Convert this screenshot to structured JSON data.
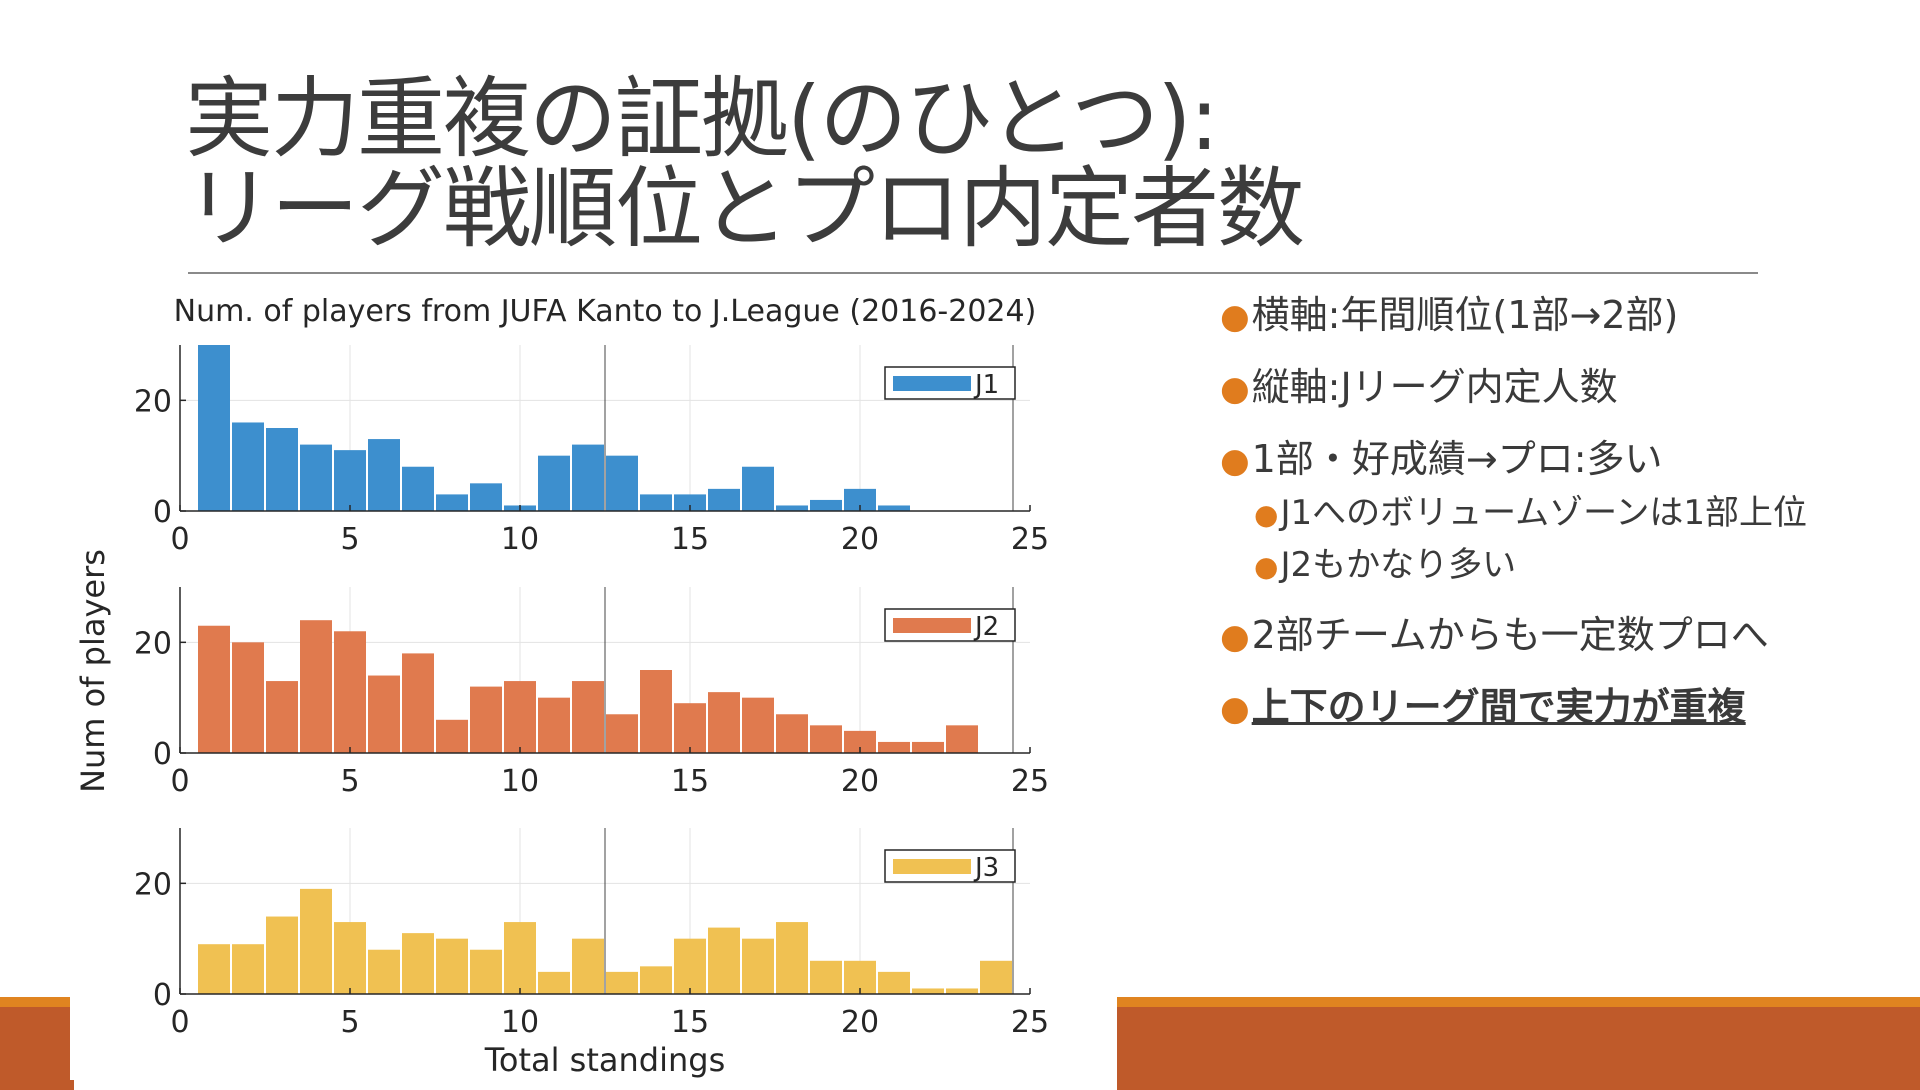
{
  "slide": {
    "title_line1": "実力重複の証拠(のひとつ):",
    "title_line2": "リーグ戦順位とプロ内定者数",
    "bullet_glyph": "●",
    "bullets": [
      "横軸:年間順位(1部→2部)",
      "縦軸:Jリーグ内定人数",
      "1部・好成績→プロ:多い",
      "2部チームからも一定数プロへ",
      "上下のリーグ間で実力が重複"
    ],
    "sub_bullets": [
      "J1へのボリュームゾーンは1部上位",
      "J2もかなり多い"
    ]
  },
  "colors": {
    "accent": "#e07c1e",
    "band": "#bf5a2a",
    "band_top": "#e08420",
    "title": "#3c3c3c"
  },
  "chart_data": {
    "type": "bar",
    "title": "Num. of players from JUFA Kanto to J.League (2016-2024)",
    "xlabel": "Total standings",
    "ylabel": "Num of players",
    "xlim": [
      0,
      25
    ],
    "ylim": [
      0,
      30
    ],
    "xticks": [
      0,
      5,
      10,
      15,
      20,
      25
    ],
    "yticks": [
      0,
      20
    ],
    "grid": true,
    "divider_x": 12.5,
    "legend_location": "top-right",
    "x": [
      1,
      2,
      3,
      4,
      5,
      6,
      7,
      8,
      9,
      10,
      11,
      12,
      13,
      14,
      15,
      16,
      17,
      18,
      19,
      20,
      21,
      22,
      23,
      24
    ],
    "series": [
      {
        "name": "J1",
        "color": "#3d8fce",
        "values": [
          30,
          16,
          15,
          12,
          11,
          13,
          8,
          3,
          5,
          1,
          10,
          12,
          10,
          3,
          3,
          4,
          8,
          1,
          2,
          4,
          1,
          0,
          0,
          0
        ]
      },
      {
        "name": "J2",
        "color": "#e07a4e",
        "values": [
          23,
          20,
          13,
          24,
          22,
          14,
          18,
          6,
          12,
          13,
          10,
          13,
          7,
          15,
          9,
          11,
          10,
          7,
          5,
          4,
          2,
          2,
          5,
          0
        ]
      },
      {
        "name": "J3",
        "color": "#f0c152",
        "values": [
          9,
          9,
          14,
          19,
          13,
          8,
          11,
          10,
          8,
          13,
          4,
          10,
          4,
          5,
          10,
          12,
          10,
          13,
          6,
          6,
          4,
          1,
          1,
          6
        ]
      }
    ]
  }
}
